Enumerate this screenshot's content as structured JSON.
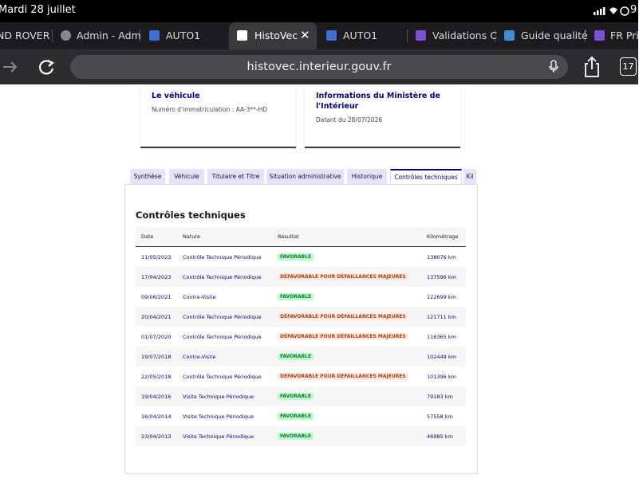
{
  "status_bar": {
    "time": "Mardi 28 juillet",
    "battery": "9"
  },
  "browser_tabs": [
    "ND ROVER",
    "Admin - Adm",
    "AUTO1",
    "HistoVec",
    "AUTO1",
    "Validations C",
    "Guide qualité",
    "FR Pri"
  ],
  "address_bar": {
    "url": "histovec.interieur.gouv.fr",
    "tab_count": "17"
  },
  "cards": [
    {
      "title": "Le véhicule",
      "text": "Numéro d'immatriculation : AA-3**-HD"
    },
    {
      "title": "Informations du Ministère de l'Intérieur",
      "text": "Datant du 28/07/2026"
    }
  ],
  "page_tabs": [
    "Synthèse",
    "Véhicule",
    "Titulaire et Titre",
    "Situation administrative",
    "Historique",
    "Contrôles techniques",
    "Kil"
  ],
  "section": {
    "title": "Contrôles techniques",
    "table": {
      "headers": [
        "Date",
        "Nature",
        "Résultat",
        "Kilométrage"
      ],
      "rows": [
        {
          "date": "11/05/2023",
          "nature": "Contrôle Technique Périodique",
          "result": "FAVORABLE",
          "km": "138076 km",
          "badge": {
            "color": "#18753c",
            "background": "#b8fec9"
          }
        },
        {
          "date": "17/04/2023",
          "nature": "Contrôle Technique Périodique",
          "result": "DÉFAVORABLE POUR DÉFAILLANCES MAJEURES",
          "km": "137596 km",
          "badge": {
            "color": "#b34000",
            "background": "#ffe9e6"
          }
        },
        {
          "date": "09/06/2021",
          "nature": "Contre-Visite",
          "result": "FAVORABLE",
          "km": "122699 km",
          "badge": {
            "color": "#18753c",
            "background": "#b8fec9"
          }
        },
        {
          "date": "20/04/2021",
          "nature": "Contrôle Technique Périodique",
          "result": "DÉFAVORABLE POUR DÉFAILLANCES MAJEURES",
          "km": "121711 km",
          "badge": {
            "color": "#b34000",
            "background": "#ffe9e6"
          }
        },
        {
          "date": "01/07/2020",
          "nature": "Contrôle Technique Périodique",
          "result": "DÉFAVORABLE POUR DÉFAILLANCES MAJEURES",
          "km": "116365 km",
          "badge": {
            "color": "#b34000",
            "background": "#ffe9e6"
          }
        },
        {
          "date": "19/07/2018",
          "nature": "Contre-Visite",
          "result": "FAVORABLE",
          "km": "102449 km",
          "badge": {
            "color": "#18753c",
            "background": "#b8fec9"
          }
        },
        {
          "date": "22/05/2018",
          "nature": "Contrôle Technique Périodique",
          "result": "DÉFAVORABLE POUR DÉFAILLANCES MAJEURES",
          "km": "101396 km",
          "badge": {
            "color": "#b34000",
            "background": "#ffe9e6"
          }
        },
        {
          "date": "19/04/2016",
          "nature": "Visite Technique Périodique",
          "result": "FAVORABLE",
          "km": "79183 km",
          "badge": {
            "color": "#18753c",
            "background": "#b8fec9"
          }
        },
        {
          "date": "16/04/2014",
          "nature": "Visite Technique Périodique",
          "result": "FAVORABLE",
          "km": "57558 km",
          "badge": {
            "color": "#18753c",
            "background": "#b8fec9"
          }
        },
        {
          "date": "23/04/2013",
          "nature": "Visite Technique Périodique",
          "result": "FAVORABLE",
          "km": "46985 km",
          "badge": {
            "color": "#18753c",
            "background": "#b8fec9"
          }
        }
      ]
    }
  }
}
